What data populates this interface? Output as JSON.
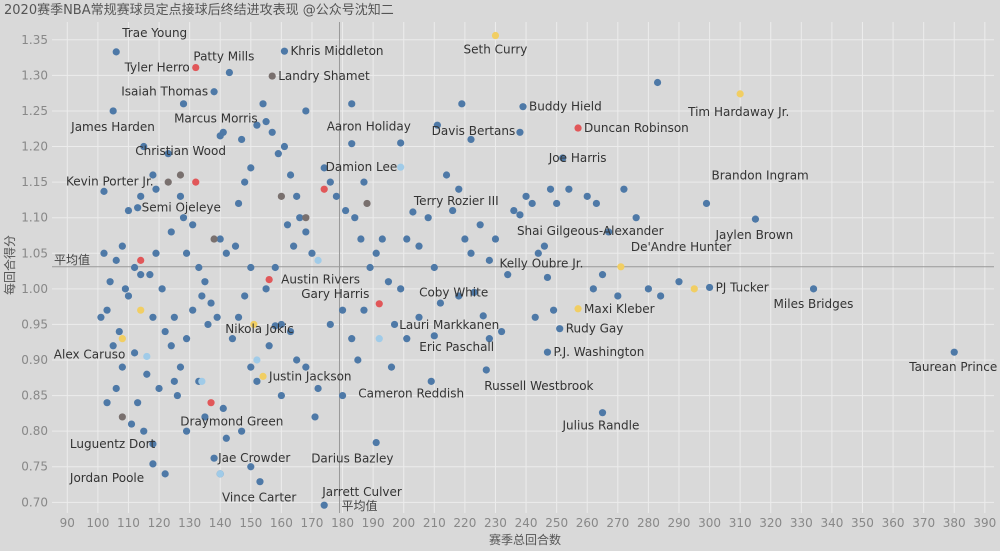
{
  "chart_data": {
    "type": "scatter",
    "title": "2020赛季NBA常规赛球员定点接球后终结进攻表现 @公众号沈知二",
    "xlabel": "赛季总回合数",
    "ylabel": "每回合得分",
    "xlim": [
      85,
      393
    ],
    "ylim": [
      0.685,
      1.375
    ],
    "xticks": [
      90,
      100,
      110,
      120,
      130,
      140,
      150,
      160,
      170,
      180,
      190,
      200,
      210,
      220,
      230,
      240,
      250,
      260,
      270,
      280,
      290,
      300,
      310,
      320,
      330,
      340,
      350,
      360,
      370,
      380,
      390
    ],
    "yticks": [
      0.7,
      0.75,
      0.8,
      0.85,
      0.9,
      0.95,
      1.0,
      1.05,
      1.1,
      1.15,
      1.2,
      1.25,
      1.3,
      1.35
    ],
    "reference_lines": {
      "x": 179,
      "y": 1.031,
      "x_label": "平均值",
      "y_label": "平均值"
    },
    "colors": {
      "blue": "#4e79a7",
      "red": "#e15759",
      "yellow": "#f1ce63",
      "gray": "#79706e",
      "lightblue": "#a0cbe8"
    },
    "labeled_points": [
      {
        "name": "Trae Young",
        "x": 106,
        "y": 1.333,
        "color": "blue"
      },
      {
        "name": "Tyler Herro",
        "x": 132,
        "y": 1.311,
        "color": "red"
      },
      {
        "name": "Patty Mills",
        "x": 143,
        "y": 1.304,
        "color": "blue"
      },
      {
        "name": "Khris Middleton",
        "x": 161,
        "y": 1.334,
        "color": "blue"
      },
      {
        "name": "Landry Shamet",
        "x": 157,
        "y": 1.299,
        "color": "gray"
      },
      {
        "name": "Seth Curry",
        "x": 230,
        "y": 1.356,
        "color": "yellow"
      },
      {
        "name": "Isaiah Thomas",
        "x": 138,
        "y": 1.277,
        "color": "blue"
      },
      {
        "name": "Tim Hardaway Jr.",
        "x": 310,
        "y": 1.274,
        "color": "yellow"
      },
      {
        "name": "Buddy Hield",
        "x": 239,
        "y": 1.256,
        "color": "blue"
      },
      {
        "name": "James Harden",
        "x": 105,
        "y": 1.25,
        "color": "blue"
      },
      {
        "name": "Marcus Morris",
        "x": 155,
        "y": 1.235,
        "color": "blue"
      },
      {
        "name": "Duncan Robinson",
        "x": 257,
        "y": 1.226,
        "color": "red"
      },
      {
        "name": "Aaron Holiday",
        "x": 183,
        "y": 1.204,
        "color": "blue"
      },
      {
        "name": "Davis Bertans",
        "x": 199,
        "y": 1.205,
        "color": "blue"
      },
      {
        "name": "Christian Wood",
        "x": 140,
        "y": 1.215,
        "color": "blue"
      },
      {
        "name": "Damion Lee",
        "x": 199,
        "y": 1.171,
        "color": "lightblue"
      },
      {
        "name": "Joe Harris",
        "x": 252,
        "y": 1.184,
        "color": "blue"
      },
      {
        "name": "Kevin Porter Jr.",
        "x": 102,
        "y": 1.137,
        "color": "blue"
      },
      {
        "name": "Brandon Ingram",
        "x": 299,
        "y": 1.12,
        "color": "blue"
      },
      {
        "name": "Terry Rozier III",
        "x": 203,
        "y": 1.108,
        "color": "blue"
      },
      {
        "name": "Semi Ojeleye",
        "x": 113,
        "y": 1.114,
        "color": "blue"
      },
      {
        "name": "Shai Gilgeous-Alexander",
        "x": 238,
        "y": 1.104,
        "color": "blue"
      },
      {
        "name": "Jaylen Brown",
        "x": 315,
        "y": 1.098,
        "color": "blue"
      },
      {
        "name": "De'Andre Hunter",
        "x": 271,
        "y": 1.031,
        "color": "yellow"
      },
      {
        "name": "Austin Rivers",
        "x": 156,
        "y": 1.013,
        "color": "red"
      },
      {
        "name": "Kelly Oubre Jr.",
        "x": 247,
        "y": 1.016,
        "color": "blue"
      },
      {
        "name": "PJ Tucker",
        "x": 300,
        "y": 1.002,
        "color": "blue"
      },
      {
        "name": "Coby White",
        "x": 223,
        "y": 0.995,
        "color": "blue"
      },
      {
        "name": "Miles Bridges",
        "x": 334,
        "y": 1.0,
        "color": "blue"
      },
      {
        "name": "Gary Harris",
        "x": 192,
        "y": 0.979,
        "color": "red"
      },
      {
        "name": "Maxi Kleber",
        "x": 257,
        "y": 0.972,
        "color": "yellow"
      },
      {
        "name": "Lauri Markkanen",
        "x": 226,
        "y": 0.962,
        "color": "blue"
      },
      {
        "name": "Nikola Jokic",
        "x": 158,
        "y": 0.948,
        "color": "blue"
      },
      {
        "name": "Rudy Gay",
        "x": 251,
        "y": 0.944,
        "color": "blue"
      },
      {
        "name": "Alex Caruso",
        "x": 116,
        "y": 0.905,
        "color": "lightblue"
      },
      {
        "name": "Eric Paschall",
        "x": 210,
        "y": 0.934,
        "color": "blue"
      },
      {
        "name": "P.J. Washington",
        "x": 247,
        "y": 0.911,
        "color": "blue"
      },
      {
        "name": "Taurean Prince",
        "x": 380,
        "y": 0.911,
        "color": "blue"
      },
      {
        "name": "Justin Jackson",
        "x": 154,
        "y": 0.877,
        "color": "yellow"
      },
      {
        "name": "Cameron Reddish",
        "x": 209,
        "y": 0.87,
        "color": "blue"
      },
      {
        "name": "Russell Westbrook",
        "x": 227,
        "y": 0.886,
        "color": "blue"
      },
      {
        "name": "Julius Randle",
        "x": 265,
        "y": 0.826,
        "color": "blue"
      },
      {
        "name": "Draymond Green",
        "x": 141,
        "y": 0.832,
        "color": "blue"
      },
      {
        "name": "Luguentz Dort",
        "x": 118,
        "y": 0.782,
        "color": "blue"
      },
      {
        "name": "Darius Bazley",
        "x": 191,
        "y": 0.784,
        "color": "blue"
      },
      {
        "name": "Jae Crowder",
        "x": 138,
        "y": 0.762,
        "color": "blue"
      },
      {
        "name": "Jordan Poole",
        "x": 118,
        "y": 0.754,
        "color": "blue"
      },
      {
        "name": "Vince Carter",
        "x": 153,
        "y": 0.729,
        "color": "blue"
      },
      {
        "name": "Jarrett Culver",
        "x": 174,
        "y": 0.696,
        "color": "blue"
      }
    ],
    "other_points": [
      [
        102,
        1.05,
        "blue"
      ],
      [
        104,
        1.01,
        "blue"
      ],
      [
        106,
        1.04,
        "blue"
      ],
      [
        108,
        1.06,
        "blue"
      ],
      [
        103,
        0.97,
        "blue"
      ],
      [
        101,
        0.96,
        "blue"
      ],
      [
        107,
        0.94,
        "blue"
      ],
      [
        105,
        0.92,
        "blue"
      ],
      [
        109,
        1.0,
        "blue"
      ],
      [
        110,
        0.99,
        "blue"
      ],
      [
        112,
        1.03,
        "blue"
      ],
      [
        114,
        1.02,
        "blue"
      ],
      [
        117,
        1.02,
        "blue"
      ],
      [
        119,
        1.05,
        "blue"
      ],
      [
        121,
        1.0,
        "blue"
      ],
      [
        118,
        0.96,
        "blue"
      ],
      [
        122,
        0.94,
        "blue"
      ],
      [
        124,
        0.92,
        "blue"
      ],
      [
        127,
        0.89,
        "blue"
      ],
      [
        125,
        0.87,
        "blue"
      ],
      [
        120,
        0.86,
        "blue"
      ],
      [
        116,
        0.88,
        "blue"
      ],
      [
        113,
        0.84,
        "blue"
      ],
      [
        111,
        0.81,
        "blue"
      ],
      [
        103,
        0.84,
        "blue"
      ],
      [
        106,
        0.86,
        "blue"
      ],
      [
        110,
        1.11,
        "blue"
      ],
      [
        114,
        1.13,
        "blue"
      ],
      [
        118,
        1.16,
        "blue"
      ],
      [
        123,
        1.19,
        "blue"
      ],
      [
        127,
        1.13,
        "blue"
      ],
      [
        131,
        1.09,
        "blue"
      ],
      [
        129,
        1.05,
        "blue"
      ],
      [
        133,
        1.03,
        "blue"
      ],
      [
        135,
        1.01,
        "blue"
      ],
      [
        137,
        0.98,
        "blue"
      ],
      [
        139,
        0.96,
        "blue"
      ],
      [
        134,
        0.99,
        "blue"
      ],
      [
        136,
        0.95,
        "blue"
      ],
      [
        140,
        1.07,
        "blue"
      ],
      [
        142,
        1.05,
        "blue"
      ],
      [
        145,
        1.06,
        "blue"
      ],
      [
        146,
        1.12,
        "blue"
      ],
      [
        148,
        1.15,
        "blue"
      ],
      [
        150,
        1.17,
        "blue"
      ],
      [
        147,
        1.21,
        "blue"
      ],
      [
        152,
        1.23,
        "blue"
      ],
      [
        154,
        1.26,
        "blue"
      ],
      [
        157,
        1.22,
        "blue"
      ],
      [
        159,
        1.19,
        "blue"
      ],
      [
        161,
        1.2,
        "blue"
      ],
      [
        163,
        1.16,
        "blue"
      ],
      [
        165,
        1.13,
        "blue"
      ],
      [
        166,
        1.1,
        "blue"
      ],
      [
        168,
        1.08,
        "blue"
      ],
      [
        170,
        1.05,
        "blue"
      ],
      [
        164,
        1.06,
        "blue"
      ],
      [
        162,
        1.09,
        "blue"
      ],
      [
        158,
        1.03,
        "blue"
      ],
      [
        155,
        1.0,
        "blue"
      ],
      [
        150,
        1.03,
        "blue"
      ],
      [
        148,
        0.99,
        "blue"
      ],
      [
        146,
        0.96,
        "blue"
      ],
      [
        144,
        0.93,
        "blue"
      ],
      [
        150,
        0.89,
        "blue"
      ],
      [
        152,
        0.87,
        "blue"
      ],
      [
        156,
        0.92,
        "blue"
      ],
      [
        160,
        0.95,
        "blue"
      ],
      [
        163,
        0.94,
        "blue"
      ],
      [
        165,
        0.9,
        "blue"
      ],
      [
        168,
        0.89,
        "blue"
      ],
      [
        172,
        0.86,
        "blue"
      ],
      [
        176,
        0.95,
        "blue"
      ],
      [
        180,
        0.97,
        "blue"
      ],
      [
        183,
        0.93,
        "blue"
      ],
      [
        185,
        0.9,
        "blue"
      ],
      [
        187,
        0.97,
        "blue"
      ],
      [
        189,
        1.03,
        "blue"
      ],
      [
        191,
        1.05,
        "blue"
      ],
      [
        193,
        1.07,
        "blue"
      ],
      [
        186,
        1.07,
        "blue"
      ],
      [
        181,
        1.11,
        "blue"
      ],
      [
        184,
        1.1,
        "blue"
      ],
      [
        178,
        1.13,
        "blue"
      ],
      [
        176,
        1.15,
        "blue"
      ],
      [
        174,
        1.17,
        "blue"
      ],
      [
        187,
        1.15,
        "blue"
      ],
      [
        195,
        1.01,
        "blue"
      ],
      [
        199,
        1.0,
        "blue"
      ],
      [
        201,
        1.07,
        "blue"
      ],
      [
        205,
        1.06,
        "blue"
      ],
      [
        208,
        1.1,
        "blue"
      ],
      [
        210,
        1.03,
        "blue"
      ],
      [
        214,
        1.16,
        "blue"
      ],
      [
        216,
        1.11,
        "blue"
      ],
      [
        218,
        1.14,
        "blue"
      ],
      [
        220,
        1.07,
        "blue"
      ],
      [
        222,
        1.05,
        "blue"
      ],
      [
        225,
        1.09,
        "blue"
      ],
      [
        228,
        1.04,
        "blue"
      ],
      [
        230,
        1.07,
        "blue"
      ],
      [
        234,
        1.02,
        "blue"
      ],
      [
        236,
        1.11,
        "blue"
      ],
      [
        240,
        1.13,
        "blue"
      ],
      [
        242,
        1.12,
        "blue"
      ],
      [
        244,
        1.05,
        "blue"
      ],
      [
        246,
        1.06,
        "blue"
      ],
      [
        248,
        1.14,
        "blue"
      ],
      [
        250,
        1.12,
        "blue"
      ],
      [
        254,
        1.14,
        "blue"
      ],
      [
        260,
        1.13,
        "blue"
      ],
      [
        263,
        1.12,
        "blue"
      ],
      [
        267,
        1.08,
        "blue"
      ],
      [
        272,
        1.14,
        "blue"
      ],
      [
        276,
        1.1,
        "blue"
      ],
      [
        280,
        1.0,
        "blue"
      ],
      [
        284,
        0.99,
        "blue"
      ],
      [
        290,
        1.01,
        "blue"
      ],
      [
        283,
        1.29,
        "blue"
      ],
      [
        265,
        1.02,
        "blue"
      ],
      [
        262,
        1.0,
        "blue"
      ],
      [
        270,
        0.99,
        "blue"
      ],
      [
        249,
        0.97,
        "blue"
      ],
      [
        243,
        0.96,
        "blue"
      ],
      [
        232,
        0.94,
        "blue"
      ],
      [
        228,
        0.93,
        "blue"
      ],
      [
        218,
        0.99,
        "blue"
      ],
      [
        212,
        0.98,
        "blue"
      ],
      [
        205,
        0.96,
        "blue"
      ],
      [
        197,
        0.95,
        "blue"
      ],
      [
        201,
        0.93,
        "blue"
      ],
      [
        196,
        0.89,
        "blue"
      ],
      [
        219,
        1.26,
        "blue"
      ],
      [
        211,
        1.23,
        "blue"
      ],
      [
        222,
        1.21,
        "blue"
      ],
      [
        238,
        1.22,
        "blue"
      ],
      [
        183,
        1.26,
        "blue"
      ],
      [
        168,
        1.25,
        "blue"
      ],
      [
        128,
        1.26,
        "blue"
      ],
      [
        141,
        1.22,
        "blue"
      ],
      [
        115,
        1.2,
        "blue"
      ],
      [
        119,
        1.14,
        "blue"
      ],
      [
        124,
        1.08,
        "blue"
      ],
      [
        128,
        1.1,
        "blue"
      ],
      [
        131,
        0.97,
        "blue"
      ],
      [
        129,
        0.93,
        "blue"
      ],
      [
        125,
        0.96,
        "blue"
      ],
      [
        112,
        0.91,
        "blue"
      ],
      [
        108,
        0.89,
        "blue"
      ],
      [
        115,
        0.8,
        "blue"
      ],
      [
        129,
        0.8,
        "blue"
      ],
      [
        135,
        0.82,
        "blue"
      ],
      [
        142,
        0.79,
        "blue"
      ],
      [
        147,
        0.8,
        "blue"
      ],
      [
        160,
        0.85,
        "blue"
      ],
      [
        171,
        0.82,
        "blue"
      ],
      [
        180,
        0.85,
        "blue"
      ],
      [
        150,
        0.75,
        "blue"
      ],
      [
        140,
        0.74,
        "blue"
      ],
      [
        122,
        0.74,
        "blue"
      ],
      [
        126,
        0.85,
        "blue"
      ],
      [
        133,
        0.87,
        "blue"
      ],
      [
        132,
        1.15,
        "red"
      ],
      [
        114,
        1.04,
        "red"
      ],
      [
        137,
        0.84,
        "red"
      ],
      [
        174,
        1.14,
        "red"
      ],
      [
        127,
        1.16,
        "gray"
      ],
      [
        123,
        1.15,
        "gray"
      ],
      [
        160,
        1.13,
        "gray"
      ],
      [
        168,
        1.1,
        "gray"
      ],
      [
        188,
        1.12,
        "gray"
      ],
      [
        138,
        1.07,
        "gray"
      ],
      [
        108,
        0.82,
        "gray"
      ],
      [
        114,
        0.97,
        "yellow"
      ],
      [
        108,
        0.93,
        "yellow"
      ],
      [
        151,
        0.95,
        "yellow"
      ],
      [
        295,
        1.0,
        "yellow"
      ],
      [
        172,
        1.04,
        "lightblue"
      ],
      [
        192,
        0.93,
        "lightblue"
      ],
      [
        152,
        0.9,
        "lightblue"
      ],
      [
        134,
        0.87,
        "lightblue"
      ],
      [
        140,
        0.74,
        "lightblue"
      ]
    ]
  }
}
